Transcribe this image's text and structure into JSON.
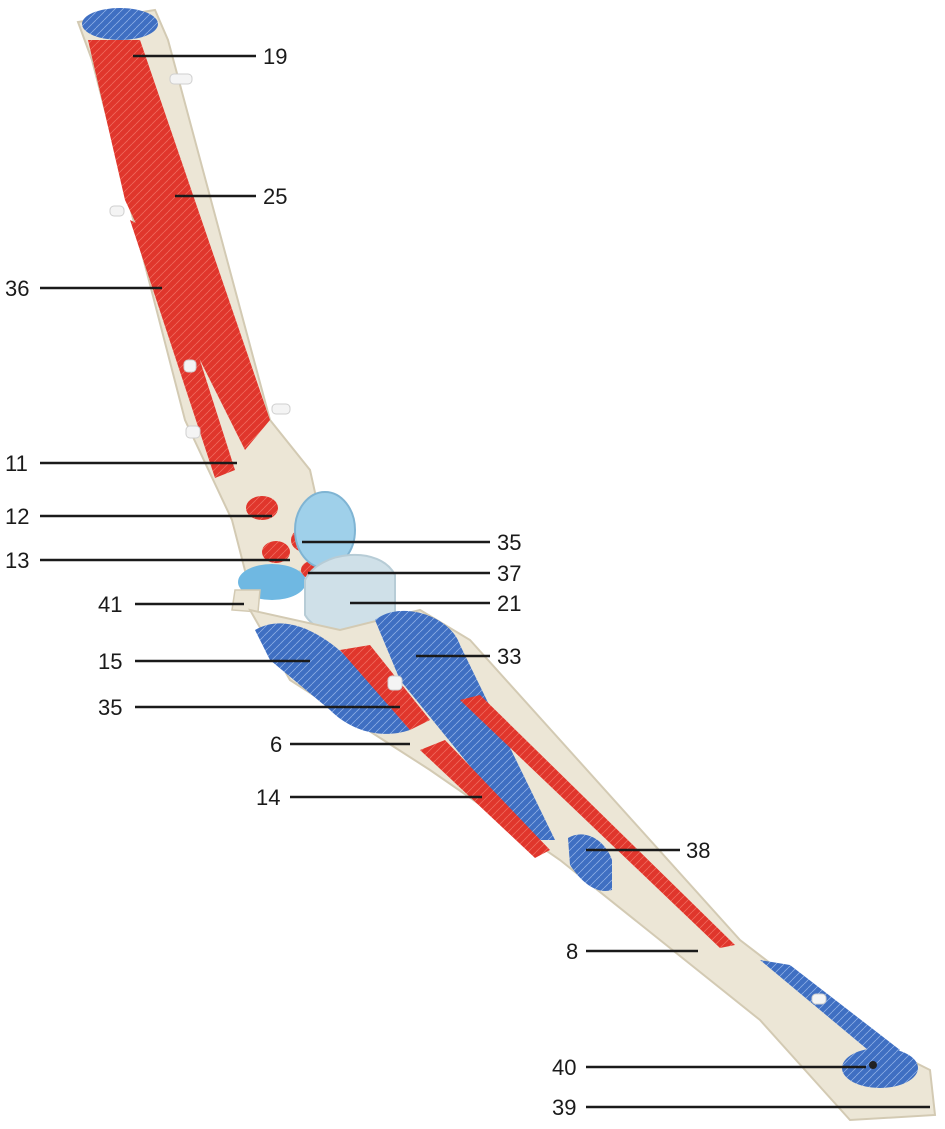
{
  "image": {
    "subject": "anatomical model of a limb bone with colored muscle attachment areas",
    "colors": {
      "background": "#ffffff",
      "bone": "#ece6d6",
      "bone_shade": "#d9d1bd",
      "muscle_red": "#e0362c",
      "tendon_blue": "#3f6fc2",
      "cartilage_light_blue": "#9fd0ea",
      "label_text": "#1a1a1a"
    }
  },
  "labels": [
    {
      "id": "l19",
      "text": "19"
    },
    {
      "id": "l25",
      "text": "25"
    },
    {
      "id": "l36",
      "text": "36"
    },
    {
      "id": "l11",
      "text": "11"
    },
    {
      "id": "l12",
      "text": "12"
    },
    {
      "id": "l35a",
      "text": "35"
    },
    {
      "id": "l13",
      "text": "13"
    },
    {
      "id": "l37",
      "text": "37"
    },
    {
      "id": "l41",
      "text": "41"
    },
    {
      "id": "l21",
      "text": "21"
    },
    {
      "id": "l33",
      "text": "33"
    },
    {
      "id": "l15",
      "text": "15"
    },
    {
      "id": "l35b",
      "text": "35"
    },
    {
      "id": "l6",
      "text": "6"
    },
    {
      "id": "l14",
      "text": "14"
    },
    {
      "id": "l38",
      "text": "38"
    },
    {
      "id": "l8",
      "text": "8"
    },
    {
      "id": "l40",
      "text": "40"
    },
    {
      "id": "l39",
      "text": "39"
    }
  ]
}
